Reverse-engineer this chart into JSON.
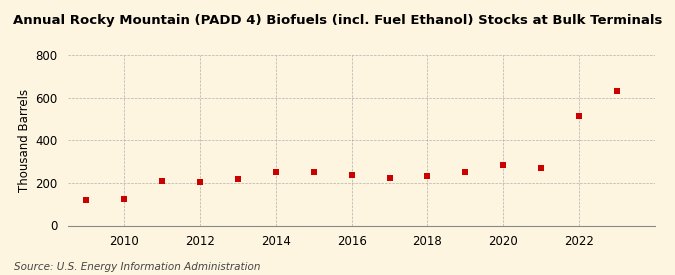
{
  "title": "Annual Rocky Mountain (PADD 4) Biofuels (incl. Fuel Ethanol) Stocks at Bulk Terminals",
  "ylabel": "Thousand Barrels",
  "source": "Source: U.S. Energy Information Administration",
  "years": [
    2009,
    2010,
    2011,
    2012,
    2013,
    2014,
    2015,
    2016,
    2017,
    2018,
    2019,
    2020,
    2021,
    2022,
    2023
  ],
  "values": [
    120,
    125,
    208,
    205,
    220,
    252,
    252,
    238,
    222,
    232,
    252,
    283,
    272,
    515,
    630
  ],
  "marker_color": "#cc0000",
  "marker_size": 5,
  "background_color": "#fdf5e0",
  "grid_color": "#aaaaaa",
  "ylim": [
    0,
    800
  ],
  "yticks": [
    0,
    200,
    400,
    600,
    800
  ],
  "xticks": [
    2010,
    2012,
    2014,
    2016,
    2018,
    2020,
    2022
  ],
  "title_fontsize": 9.5,
  "label_fontsize": 8.5,
  "source_fontsize": 7.5
}
